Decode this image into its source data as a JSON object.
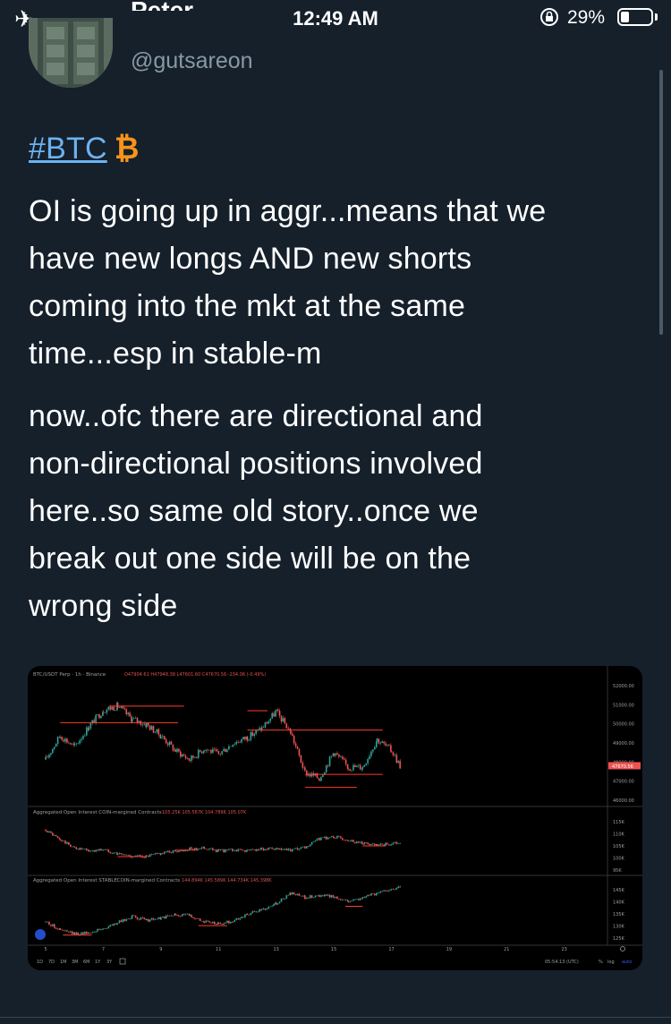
{
  "status_bar": {
    "time": "12:49 AM",
    "battery_percent": "29%",
    "battery_level": 0.29,
    "airplane_icon": "airplane-icon",
    "rotation_lock_icon": "rotation-lock-icon"
  },
  "profile": {
    "display_name": "Peter",
    "handle": "@gutsareon"
  },
  "tweet": {
    "hashtag": "#BTC",
    "bitcoin_glyph": "₿",
    "lines_para1": [
      "OI is going up in aggr...means that we",
      "have new longs AND new shorts",
      "coming into the mkt at the same",
      "time...esp in stable-m"
    ],
    "lines_para2": [
      "now..ofc there are directional and",
      "non-directional positions involved",
      "here..so same old story..once we",
      "break out one side will be on the",
      "wrong side"
    ]
  },
  "chart_data": {
    "type": "line",
    "panels": [
      {
        "title": "BTC/USDT Perp · 1h · Binance",
        "ohlc_readout": "O47904.61 H47948.38 L47601.60 C47670.56 -234.06 (-0.49%)",
        "y_ticks": [
          "52000.00",
          "51000.00",
          "50000.00",
          "49000.00",
          "48000.00",
          "47000.00",
          "46000.00"
        ],
        "last_price_label": "47670.56",
        "ylim": [
          45800,
          52300
        ],
        "x": [
          5,
          5.5,
          6,
          6.5,
          7,
          7.5,
          8,
          8.5,
          9,
          9.5,
          10,
          10.5,
          11,
          11.5,
          12,
          12.5,
          13,
          13.5,
          14,
          14.5,
          15,
          15.5,
          16,
          16.5,
          17,
          17.3
        ],
        "values": [
          48000,
          49300,
          48700,
          49800,
          50700,
          50900,
          50200,
          49900,
          49300,
          48500,
          48000,
          48600,
          48300,
          48900,
          49200,
          49700,
          50600,
          49500,
          47300,
          47000,
          48400,
          47600,
          47600,
          49100,
          48500,
          47670
        ]
      },
      {
        "title": "Aggregated Open Interest COIN-margined Contracts",
        "readout": "105.25K 105.567K 104.789K 105.07K",
        "y_ticks": [
          "115K",
          "110K",
          "105K",
          "100K",
          "95K"
        ],
        "ylim": [
          93000,
          117000
        ],
        "x": [
          5,
          5.5,
          6,
          6.5,
          7,
          7.5,
          8,
          8.5,
          9,
          9.5,
          10,
          10.5,
          11,
          11.5,
          12,
          12.5,
          13,
          13.5,
          14,
          14.5,
          15,
          15.5,
          16,
          16.5,
          17,
          17.3
        ],
        "values": [
          111000,
          106500,
          103000,
          101500,
          102200,
          100300,
          99200,
          99100,
          100500,
          101500,
          102400,
          102900,
          101500,
          102000,
          101700,
          102500,
          102200,
          101700,
          102900,
          106900,
          107900,
          106500,
          105000,
          103900,
          104700,
          105100
        ]
      },
      {
        "title": "Aggregated Open Interest STABLECOIN-margined Contracts",
        "readout": "144.894K 145.589K 144.734K 145.398K",
        "y_ticks": [
          "145K",
          "140K",
          "135K",
          "130K",
          "125K"
        ],
        "ylim": [
          124000,
          147000
        ],
        "x": [
          5,
          5.5,
          6,
          6.5,
          7,
          7.5,
          8,
          8.5,
          9,
          9.5,
          10,
          10.5,
          11,
          11.5,
          12,
          12.5,
          13,
          13.5,
          14,
          14.5,
          15,
          15.5,
          16,
          16.5,
          17,
          17.3
        ],
        "values": [
          131000,
          127500,
          125800,
          126400,
          128000,
          130500,
          133200,
          131600,
          132500,
          134000,
          133800,
          131000,
          130000,
          131200,
          134200,
          136000,
          139000,
          143000,
          141500,
          142300,
          141700,
          139900,
          141300,
          143300,
          145100,
          145400
        ]
      }
    ],
    "x_ticks": [
      "5",
      "7",
      "9",
      "11",
      "13",
      "15",
      "17",
      "19",
      "21",
      "23"
    ],
    "x_tick_values": [
      5,
      7,
      9,
      11,
      13,
      15,
      17,
      19,
      21,
      23
    ],
    "xlim": [
      4.5,
      24.5
    ],
    "timeframes": [
      "1D",
      "7D",
      "1M",
      "3M",
      "6M",
      "1Y",
      "3Y"
    ],
    "clock": "05:54:13 (UTC)",
    "scale_buttons": [
      "%",
      "log",
      "auto"
    ],
    "colors": {
      "up": "#26a69a",
      "down": "#ef5350",
      "level": "#ff3b30",
      "text": "#9aa0a6"
    }
  }
}
